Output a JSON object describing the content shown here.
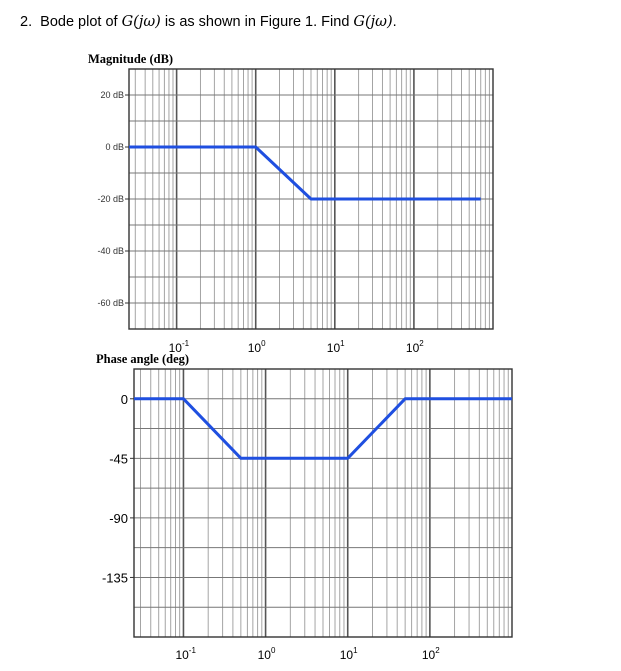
{
  "question": {
    "number": "2.",
    "text_before": "Bode plot of ",
    "func1": "G(jω)",
    "text_middle": " is as shown in Figure 1. Find ",
    "func2": "G(jω)",
    "text_after": "."
  },
  "chart_data": [
    {
      "type": "line",
      "title": "Magnitude (dB)",
      "xscale": "log",
      "xlim": [
        0.025,
        1000
      ],
      "ylim": [
        -70,
        30
      ],
      "yticks": [
        {
          "value": 20,
          "label": "20 dB"
        },
        {
          "value": 0,
          "label": "0 dB"
        },
        {
          "value": -20,
          "label": "-20 dB"
        },
        {
          "value": -40,
          "label": "-40 dB"
        },
        {
          "value": -60,
          "label": "-60 dB"
        }
      ],
      "xticks": [
        {
          "value": 0.1,
          "base": "10",
          "exp": "-1"
        },
        {
          "value": 1,
          "base": "10",
          "exp": "0"
        },
        {
          "value": 10,
          "base": "10",
          "exp": "1"
        },
        {
          "value": 100,
          "base": "10",
          "exp": "2"
        }
      ],
      "grid": true,
      "series": [
        {
          "x": [
            0.025,
            1,
            5,
            700
          ],
          "y": [
            0,
            0,
            -20,
            -20
          ],
          "color": "#1f4fe0"
        }
      ]
    },
    {
      "type": "line",
      "title": "Phase angle (deg)",
      "xscale": "log",
      "xlim": [
        0.025,
        1000
      ],
      "ylim": [
        -180,
        22.5
      ],
      "yticks": [
        {
          "value": 0,
          "label": "0"
        },
        {
          "value": -45,
          "label": "-45"
        },
        {
          "value": -90,
          "label": "-90"
        },
        {
          "value": -135,
          "label": "-135"
        }
      ],
      "xticks": [
        {
          "value": 0.1,
          "base": "10",
          "exp": "-1"
        },
        {
          "value": 1,
          "base": "10",
          "exp": "0"
        },
        {
          "value": 10,
          "base": "10",
          "exp": "1"
        },
        {
          "value": 100,
          "base": "10",
          "exp": "2"
        }
      ],
      "grid": true,
      "series": [
        {
          "x": [
            0.025,
            0.1,
            0.5,
            10,
            50,
            1000
          ],
          "y": [
            0,
            0,
            -45,
            -45,
            0,
            0
          ],
          "color": "#1f4fe0"
        }
      ]
    }
  ]
}
